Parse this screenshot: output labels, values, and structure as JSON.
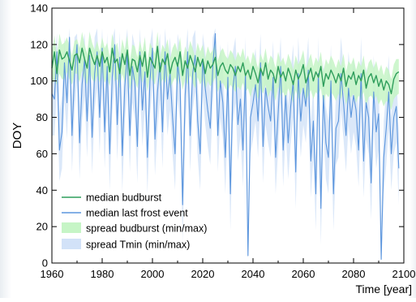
{
  "chart_data": {
    "type": "line",
    "title": "",
    "xlabel": "Time [year]",
    "ylabel": "DOY",
    "xlim": [
      1960,
      2100
    ],
    "ylim": [
      0,
      140
    ],
    "xticks": [
      1960,
      1980,
      2000,
      2020,
      2040,
      2060,
      2080,
      2100
    ],
    "yticks": [
      0,
      20,
      40,
      60,
      80,
      100,
      120,
      140
    ],
    "grid": false,
    "legend_position": "bottom-left",
    "legend": [
      {
        "label": "median budburst",
        "kind": "line",
        "color": "#2e9e5b"
      },
      {
        "label": "median last frost event",
        "kind": "line",
        "color": "#5b95dd"
      },
      {
        "label": "spread budburst (min/max)",
        "kind": "band",
        "color": "#c6f5c6"
      },
      {
        "label": "spread Tmin (min/max)",
        "kind": "band",
        "color": "#d2e2f8"
      }
    ],
    "x": [
      1960,
      1961,
      1962,
      1963,
      1964,
      1965,
      1966,
      1967,
      1968,
      1969,
      1970,
      1971,
      1972,
      1973,
      1974,
      1975,
      1976,
      1977,
      1978,
      1979,
      1980,
      1981,
      1982,
      1983,
      1984,
      1985,
      1986,
      1987,
      1988,
      1989,
      1990,
      1991,
      1992,
      1993,
      1994,
      1995,
      1996,
      1997,
      1998,
      1999,
      2000,
      2001,
      2002,
      2003,
      2004,
      2005,
      2006,
      2007,
      2008,
      2009,
      2010,
      2011,
      2012,
      2013,
      2014,
      2015,
      2016,
      2017,
      2018,
      2019,
      2020,
      2021,
      2022,
      2023,
      2024,
      2025,
      2026,
      2027,
      2028,
      2029,
      2030,
      2031,
      2032,
      2033,
      2034,
      2035,
      2036,
      2037,
      2038,
      2039,
      2040,
      2041,
      2042,
      2043,
      2044,
      2045,
      2046,
      2047,
      2048,
      2049,
      2050,
      2051,
      2052,
      2053,
      2054,
      2055,
      2056,
      2057,
      2058,
      2059,
      2060,
      2061,
      2062,
      2063,
      2064,
      2065,
      2066,
      2067,
      2068,
      2069,
      2070,
      2071,
      2072,
      2073,
      2074,
      2075,
      2076,
      2077,
      2078,
      2079,
      2080,
      2081,
      2082,
      2083,
      2084,
      2085,
      2086,
      2087,
      2088,
      2089,
      2090,
      2091,
      2092,
      2093,
      2094,
      2095,
      2096,
      2097,
      2098
    ],
    "series": [
      {
        "name": "median budburst",
        "color": "#2e9e5b",
        "values": [
          107,
          116,
          104,
          117,
          112,
          113,
          116,
          111,
          106,
          114,
          115,
          110,
          118,
          112,
          107,
          118,
          113,
          109,
          114,
          108,
          116,
          110,
          113,
          105,
          118,
          110,
          112,
          104,
          115,
          109,
          117,
          103,
          112,
          111,
          105,
          114,
          108,
          116,
          102,
          113,
          110,
          107,
          119,
          105,
          112,
          109,
          115,
          104,
          110,
          113,
          108,
          116,
          103,
          111,
          107,
          114,
          110,
          105,
          113,
          108,
          112,
          104,
          111,
          107,
          109,
          113,
          103,
          108,
          110,
          106,
          104,
          109,
          107,
          103,
          108,
          105,
          110,
          103,
          106,
          101,
          108,
          104,
          99,
          107,
          103,
          110,
          101,
          106,
          104,
          99,
          108,
          102,
          105,
          100,
          107,
          103,
          98,
          106,
          101,
          104,
          109,
          99,
          103,
          107,
          100,
          105,
          102,
          108,
          97,
          104,
          101,
          106,
          103,
          99,
          104,
          100,
          107,
          97,
          103,
          101,
          105,
          98,
          103,
          100,
          106,
          96,
          102,
          104,
          99,
          103,
          97,
          101,
          95,
          100,
          98,
          93,
          101,
          104,
          105
        ]
      },
      {
        "name": "median last frost event",
        "color": "#5b95dd",
        "values": [
          93,
          90,
          116,
          62,
          72,
          110,
          88,
          124,
          70,
          104,
          120,
          66,
          98,
          112,
          78,
          114,
          69,
          104,
          116,
          80,
          118,
          72,
          108,
          60,
          102,
          120,
          76,
          113,
          59,
          97,
          115,
          70,
          108,
          99,
          64,
          116,
          84,
          105,
          58,
          100,
          118,
          68,
          94,
          110,
          72,
          116,
          90,
          104,
          80,
          60,
          110,
          98,
          32,
          92,
          116,
          70,
          104,
          114,
          78,
          60,
          112,
          96,
          84,
          74,
          108,
          126,
          70,
          100,
          88,
          58,
          102,
          38,
          96,
          108,
          76,
          90,
          62,
          104,
          4,
          80,
          88,
          98,
          78,
          110,
          64,
          96,
          86,
          78,
          102,
          58,
          82,
          108,
          62,
          92,
          66,
          86,
          100,
          50,
          104,
          78,
          96,
          86,
          106,
          56,
          78,
          38,
          104,
          30,
          92,
          66,
          58,
          100,
          38,
          74,
          78,
          104,
          88,
          70,
          96,
          80,
          92,
          84,
          62,
          104,
          56,
          88,
          80,
          44,
          94,
          72,
          82,
          2,
          58,
          74,
          94,
          60,
          80,
          86,
          52
        ]
      }
    ],
    "bands": [
      {
        "name": "spread budburst (min/max)",
        "color": "#c6f5c6",
        "lower": [
          99,
          100,
          98,
          104,
          101,
          101,
          105,
          101,
          98,
          104,
          104,
          99,
          106,
          101,
          98,
          106,
          101,
          99,
          103,
          99,
          105,
          99,
          102,
          97,
          107,
          100,
          101,
          96,
          104,
          99,
          105,
          95,
          101,
          100,
          96,
          103,
          99,
          105,
          94,
          103,
          100,
          98,
          107,
          97,
          101,
          99,
          103,
          96,
          99,
          102,
          98,
          104,
          95,
          101,
          98,
          103,
          99,
          96,
          102,
          98,
          101,
          95,
          100,
          97,
          99,
          102,
          94,
          98,
          99,
          96,
          94,
          98,
          96,
          94,
          97,
          95,
          99,
          94,
          96,
          91,
          97,
          94,
          90,
          96,
          93,
          98,
          91,
          95,
          93,
          89,
          97,
          92,
          94,
          90,
          96,
          92,
          88,
          95,
          90,
          93,
          97,
          89,
          92,
          95,
          90,
          94,
          92,
          96,
          87,
          93,
          91,
          94,
          92,
          89,
          93,
          90,
          95,
          87,
          92,
          91,
          93,
          88,
          92,
          90,
          94,
          86,
          91,
          92,
          89,
          92,
          87,
          90,
          86,
          89,
          88,
          84,
          90,
          92,
          93
        ],
        "upper": [
          116,
          125,
          113,
          126,
          120,
          121,
          124,
          119,
          114,
          122,
          123,
          118,
          127,
          120,
          115,
          127,
          121,
          117,
          122,
          116,
          124,
          118,
          121,
          113,
          126,
          118,
          121,
          112,
          123,
          117,
          125,
          111,
          120,
          119,
          113,
          122,
          116,
          124,
          110,
          121,
          118,
          115,
          127,
          113,
          120,
          117,
          123,
          112,
          118,
          121,
          116,
          124,
          111,
          119,
          115,
          122,
          118,
          113,
          121,
          116,
          120,
          112,
          119,
          115,
          117,
          121,
          111,
          116,
          118,
          114,
          112,
          117,
          115,
          111,
          116,
          113,
          118,
          111,
          114,
          109,
          116,
          112,
          107,
          115,
          111,
          118,
          109,
          114,
          112,
          107,
          116,
          110,
          113,
          108,
          115,
          111,
          106,
          114,
          109,
          112,
          117,
          107,
          111,
          115,
          108,
          113,
          110,
          116,
          105,
          112,
          109,
          114,
          111,
          107,
          112,
          108,
          115,
          105,
          111,
          109,
          113,
          106,
          111,
          108,
          114,
          104,
          110,
          112,
          107,
          111,
          105,
          109,
          103,
          108,
          106,
          101,
          109,
          112,
          112
        ]
      },
      {
        "name": "spread Tmin (min/max)",
        "color": "#d2e2f8",
        "lower": [
          70,
          70,
          95,
          45,
          52,
          90,
          68,
          104,
          50,
          84,
          100,
          46,
          78,
          92,
          58,
          94,
          49,
          84,
          96,
          60,
          98,
          52,
          88,
          40,
          82,
          100,
          56,
          93,
          39,
          77,
          95,
          50,
          88,
          79,
          44,
          96,
          64,
          85,
          38,
          80,
          98,
          48,
          74,
          90,
          52,
          96,
          70,
          84,
          60,
          40,
          90,
          78,
          12,
          72,
          96,
          50,
          84,
          94,
          58,
          40,
          92,
          76,
          64,
          54,
          88,
          106,
          50,
          80,
          68,
          38,
          82,
          18,
          76,
          88,
          56,
          70,
          42,
          84,
          2,
          60,
          68,
          78,
          58,
          90,
          44,
          76,
          66,
          58,
          82,
          38,
          62,
          88,
          42,
          72,
          46,
          66,
          80,
          30,
          84,
          58,
          76,
          66,
          86,
          36,
          58,
          18,
          84,
          10,
          72,
          46,
          38,
          80,
          18,
          54,
          58,
          84,
          68,
          50,
          76,
          60,
          72,
          64,
          42,
          84,
          36,
          68,
          60,
          24,
          74,
          52,
          62,
          1,
          38,
          54,
          74,
          40,
          60,
          66,
          32
        ],
        "upper": [
          100,
          110,
          126,
          82,
          92,
          124,
          108,
          129,
          90,
          124,
          126,
          86,
          118,
          126,
          98,
          128,
          89,
          124,
          129,
          100,
          129,
          92,
          126,
          80,
          122,
          129,
          96,
          127,
          79,
          117,
          129,
          90,
          126,
          119,
          84,
          129,
          104,
          125,
          78,
          120,
          129,
          88,
          114,
          126,
          92,
          129,
          110,
          124,
          100,
          80,
          126,
          118,
          52,
          112,
          129,
          90,
          124,
          128,
          98,
          80,
          126,
          116,
          104,
          94,
          124,
          129,
          90,
          120,
          108,
          78,
          122,
          58,
          116,
          124,
          96,
          110,
          82,
          124,
          24,
          100,
          108,
          118,
          98,
          126,
          84,
          116,
          106,
          98,
          122,
          78,
          102,
          124,
          82,
          112,
          86,
          106,
          120,
          70,
          124,
          98,
          116,
          106,
          124,
          76,
          98,
          58,
          124,
          50,
          112,
          86,
          78,
          120,
          58,
          94,
          98,
          124,
          108,
          90,
          116,
          100,
          112,
          104,
          82,
          124,
          76,
          108,
          100,
          64,
          114,
          92,
          102,
          22,
          78,
          94,
          114,
          80,
          100,
          106,
          72
        ]
      }
    ]
  }
}
